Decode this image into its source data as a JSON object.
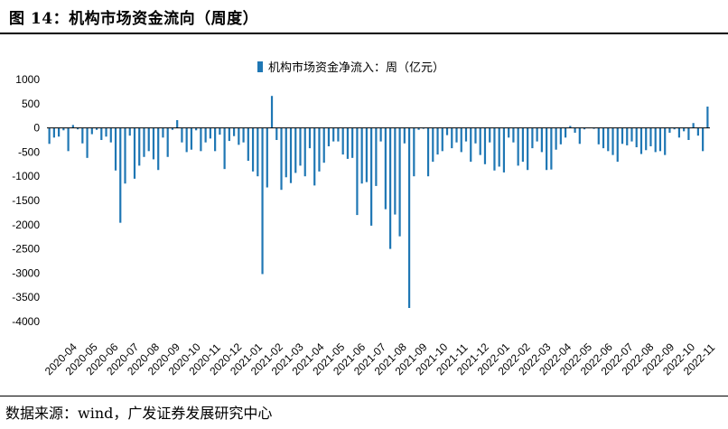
{
  "title": "图 14：机构市场资金流向（周度）",
  "source": "数据来源：wind，广发证券发展研究中心",
  "colors": {
    "bar": "#1f77b4",
    "axis": "#000000"
  },
  "chart_data": {
    "type": "bar",
    "title": "",
    "legend": "机构市场资金净流入：周（亿元）",
    "legend_position": "top-center",
    "xlabel": "",
    "ylabel": "",
    "ylim": [
      -4000,
      1000
    ],
    "yticks": [
      1000,
      500,
      0,
      -500,
      -1000,
      -1500,
      -2000,
      -2500,
      -3000,
      -3500,
      -4000
    ],
    "xtick_labels": [
      "2020-04",
      "2020-05",
      "2020-06",
      "2020-07",
      "2020-08",
      "2020-09",
      "2020-10",
      "2020-11",
      "2020-12",
      "2021-01",
      "2021-02",
      "2021-03",
      "2021-04",
      "2021-05",
      "2021-06",
      "2021-07",
      "2021-08",
      "2021-09",
      "2021-10",
      "2021-11",
      "2021-12",
      "2022-01",
      "2022-02",
      "2022-03",
      "2022-04",
      "2022-05",
      "2022-06",
      "2022-07",
      "2022-08",
      "2022-09",
      "2022-10",
      "2022-11"
    ],
    "weeks_per_tick": 4.35,
    "values": [
      -330,
      -200,
      -180,
      -50,
      -480,
      60,
      -30,
      -320,
      -620,
      -130,
      -40,
      -250,
      -180,
      -300,
      -880,
      -1960,
      -1150,
      -160,
      -1050,
      -780,
      -600,
      -480,
      -650,
      -870,
      -200,
      -600,
      -40,
      160,
      -300,
      -500,
      -450,
      -50,
      -480,
      -300,
      -220,
      -480,
      -140,
      -850,
      -270,
      -170,
      -350,
      -300,
      -680,
      -900,
      -1000,
      -3020,
      -1230,
      660,
      -250,
      -1280,
      -1020,
      -1140,
      -930,
      -780,
      -1000,
      -420,
      -1190,
      -900,
      -720,
      -380,
      -280,
      -280,
      -550,
      -640,
      -620,
      -1800,
      -1150,
      -1120,
      -2020,
      -1200,
      -280,
      -1680,
      -2500,
      -1790,
      -2240,
      -320,
      -3720,
      -1000,
      -40,
      -20,
      -1000,
      -700,
      -550,
      -480,
      -150,
      -420,
      -300,
      -500,
      -280,
      -700,
      -320,
      -560,
      -750,
      -300,
      -880,
      -800,
      -920,
      -200,
      -300,
      -780,
      -700,
      -870,
      -420,
      -280,
      -500,
      -870,
      -860,
      -450,
      -340,
      -200,
      40,
      -100,
      -330,
      -30,
      0,
      -20,
      -340,
      -420,
      -480,
      -560,
      -700,
      -330,
      -360,
      -280,
      -400,
      -540,
      -460,
      -380,
      -500,
      -480,
      -560,
      -100,
      -30,
      -200,
      -70,
      -250,
      100,
      -160,
      -480,
      440
    ]
  }
}
